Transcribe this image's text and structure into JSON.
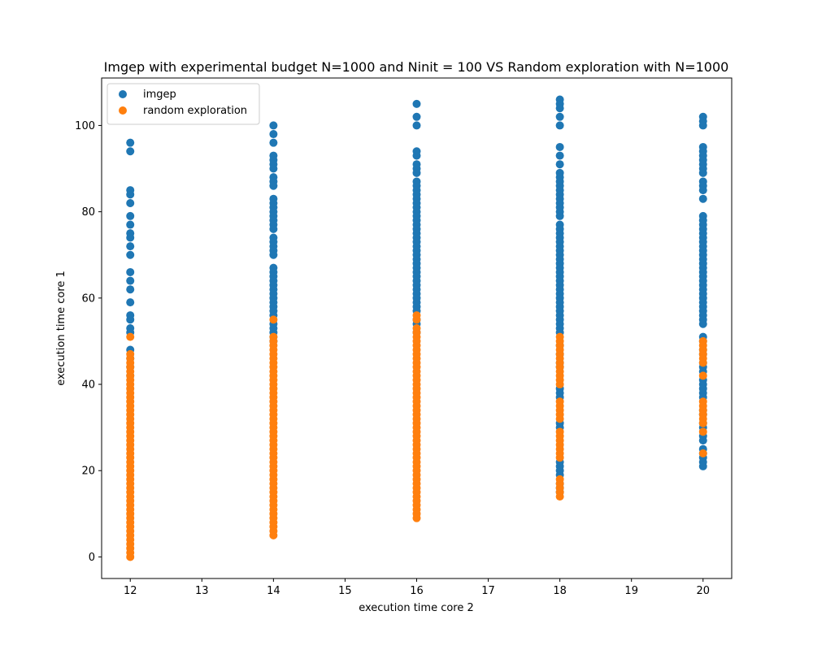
{
  "chart_data": {
    "type": "scatter",
    "title": "Imgep with experimental budget N=1000 and Ninit = 100 VS Random exploration with N=1000",
    "xlabel": "execution time core 2",
    "ylabel": "execution time core 1",
    "xlim": [
      11.6,
      20.4
    ],
    "ylim": [
      -5,
      111
    ],
    "xticks": [
      12,
      13,
      14,
      15,
      16,
      17,
      18,
      19,
      20
    ],
    "yticks": [
      0,
      20,
      40,
      60,
      80,
      100
    ],
    "grid": false,
    "legend_position": "top-left",
    "series": [
      {
        "name": "imgep",
        "color": "#1f77b4",
        "groups": [
          {
            "x": 12,
            "y": [
              96,
              94,
              85,
              84,
              82,
              79,
              77,
              75,
              74,
              72,
              70,
              66,
              64,
              62,
              59,
              56,
              55,
              53,
              52,
              48,
              46,
              44,
              42
            ]
          },
          {
            "x": 14,
            "y": [
              100,
              98,
              96,
              93,
              92,
              91,
              90,
              88,
              87,
              86,
              83,
              82,
              81,
              80,
              79,
              78,
              77,
              76,
              74,
              73,
              72,
              71,
              70,
              67,
              66,
              65,
              64,
              63,
              62,
              61,
              60,
              59,
              58,
              57,
              56,
              54,
              53,
              52,
              51,
              50
            ]
          },
          {
            "x": 16,
            "y": [
              105,
              102,
              100,
              94,
              93,
              91,
              90,
              89,
              87,
              86,
              85,
              84,
              83,
              82,
              81,
              80,
              79,
              78,
              77,
              76,
              75,
              74,
              73,
              72,
              71,
              70,
              69,
              68,
              67,
              66,
              65,
              64,
              63,
              62,
              61,
              60,
              59,
              58,
              57,
              55,
              54,
              52
            ]
          },
          {
            "x": 18,
            "y": [
              106,
              105,
              104,
              102,
              100,
              95,
              93,
              91,
              89,
              88,
              87,
              86,
              85,
              84,
              83,
              82,
              81,
              80,
              79,
              77,
              76,
              75,
              74,
              73,
              72,
              71,
              70,
              69,
              68,
              67,
              66,
              65,
              64,
              63,
              62,
              61,
              60,
              59,
              58,
              57,
              56,
              55,
              54,
              53,
              52,
              49,
              47,
              45,
              44,
              39,
              38,
              37,
              31,
              30,
              22,
              21,
              20,
              19,
              17,
              16,
              15
            ]
          },
          {
            "x": 20,
            "y": [
              102,
              101,
              100,
              95,
              94,
              93,
              92,
              91,
              90,
              89,
              87,
              86,
              85,
              83,
              79,
              78,
              77,
              76,
              75,
              74,
              73,
              72,
              71,
              70,
              69,
              68,
              67,
              66,
              65,
              64,
              63,
              62,
              61,
              60,
              59,
              58,
              57,
              56,
              55,
              54,
              51,
              50,
              48,
              47,
              45,
              44,
              43,
              41,
              40,
              39,
              38,
              37,
              34,
              33,
              31,
              30,
              28,
              27,
              25,
              24,
              23,
              22,
              21
            ]
          }
        ]
      },
      {
        "name": "random exploration",
        "color": "#ff7f0e",
        "groups": [
          {
            "x": 12,
            "ymin": 0,
            "ymax": 47,
            "extra": [
              51
            ]
          },
          {
            "x": 14,
            "ymin": 5,
            "ymax": 51,
            "extra": [
              55
            ]
          },
          {
            "x": 16,
            "ymin": 9,
            "ymax": 53,
            "extra": [
              56,
              55
            ]
          },
          {
            "x": 18,
            "ymin": 14,
            "ymax": 51,
            "skip": [
              [
                37,
                39
              ],
              [
                30,
                31
              ],
              [
                19,
                22
              ]
            ]
          },
          {
            "x": 20,
            "values": [
              50,
              49,
              48,
              47,
              46,
              45,
              42,
              36,
              35,
              34,
              33,
              32,
              31,
              29,
              24
            ]
          }
        ]
      }
    ]
  }
}
